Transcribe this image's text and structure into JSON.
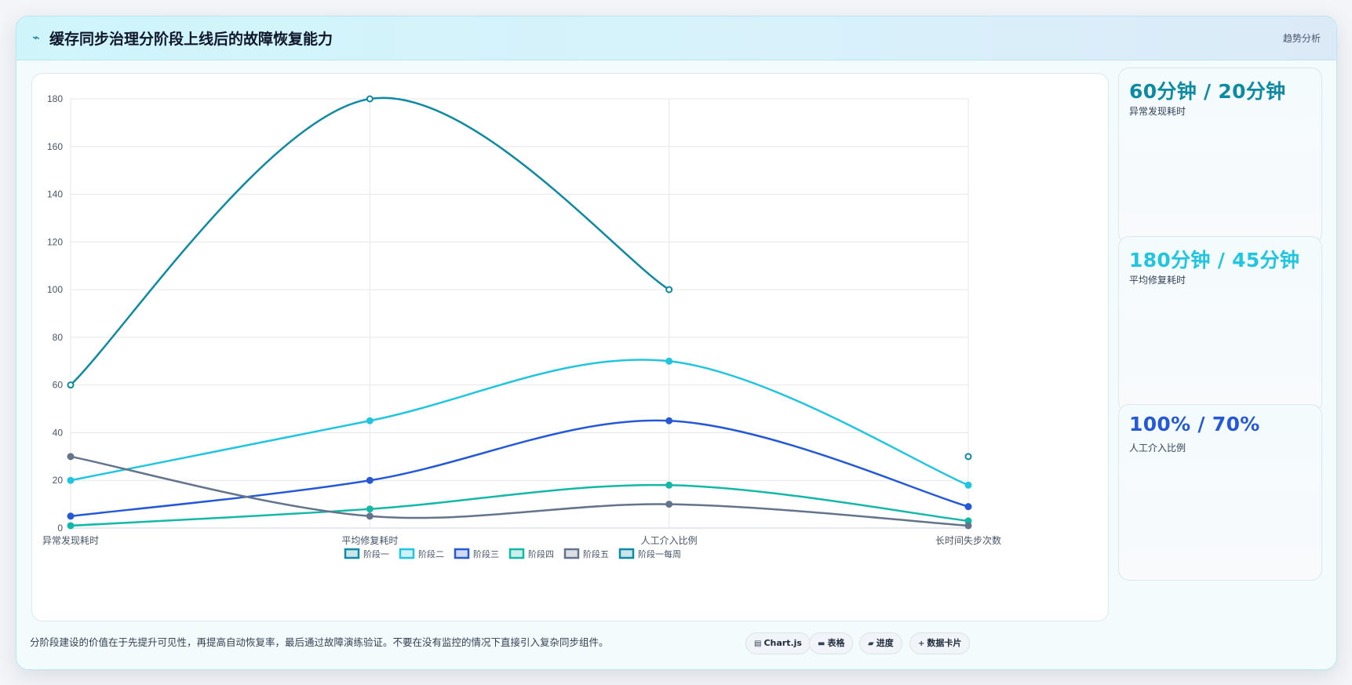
{
  "header": {
    "icon": "lightning-icon",
    "title": "缓存同步治理分阶段上线后的故障恢复能力",
    "trend_label": "趋势分析"
  },
  "stats": [
    {
      "value": "60分钟 / 20分钟",
      "label": "异常发现耗时",
      "color": "#0e8aa2"
    },
    {
      "value": "180分钟 / 45分钟",
      "label": "平均修复耗时",
      "color": "#22c5e0"
    },
    {
      "value": "100% / 70%",
      "label": "人工介入比例",
      "color": "#2559d6"
    }
  ],
  "footer": {
    "note": "分阶段建设的价值在于先提升可见性，再提高自动恢复率，最后通过故障演练验证。不要在没有监控的情况下直接引入复杂同步组件。",
    "chips": [
      {
        "icon": "chart-icon",
        "label": "Chart.js"
      },
      {
        "icon": "table-icon",
        "label": "表格"
      },
      {
        "icon": "progress-icon",
        "label": "进度"
      },
      {
        "icon": "card-icon",
        "label": "数据卡片"
      }
    ]
  },
  "chart_data": {
    "type": "line",
    "categories": [
      "异常发现耗时",
      "平均修复耗时",
      "人工介入比例",
      "长时间失步次数"
    ],
    "ylim": [
      0,
      180
    ],
    "yticks": [
      0,
      20,
      40,
      60,
      80,
      100,
      120,
      140,
      160,
      180
    ],
    "grid": true,
    "legend_position": "bottom",
    "series": [
      {
        "name": "阶段一",
        "values": [
          60,
          180,
          100,
          null
        ],
        "color": "#0e8aa2"
      },
      {
        "name": "阶段二",
        "values": [
          20,
          45,
          70,
          18
        ],
        "color": "#22c5e0"
      },
      {
        "name": "阶段三",
        "values": [
          5,
          20,
          45,
          9
        ],
        "color": "#2559d6"
      },
      {
        "name": "阶段四",
        "values": [
          1,
          8,
          18,
          3
        ],
        "color": "#14b8a6"
      },
      {
        "name": "阶段五",
        "values": [
          30,
          5,
          10,
          1
        ],
        "color": "#64748b"
      },
      {
        "name": "阶段一每周",
        "values": [
          null,
          null,
          null,
          30
        ],
        "color": "#0e8aa2"
      }
    ]
  }
}
